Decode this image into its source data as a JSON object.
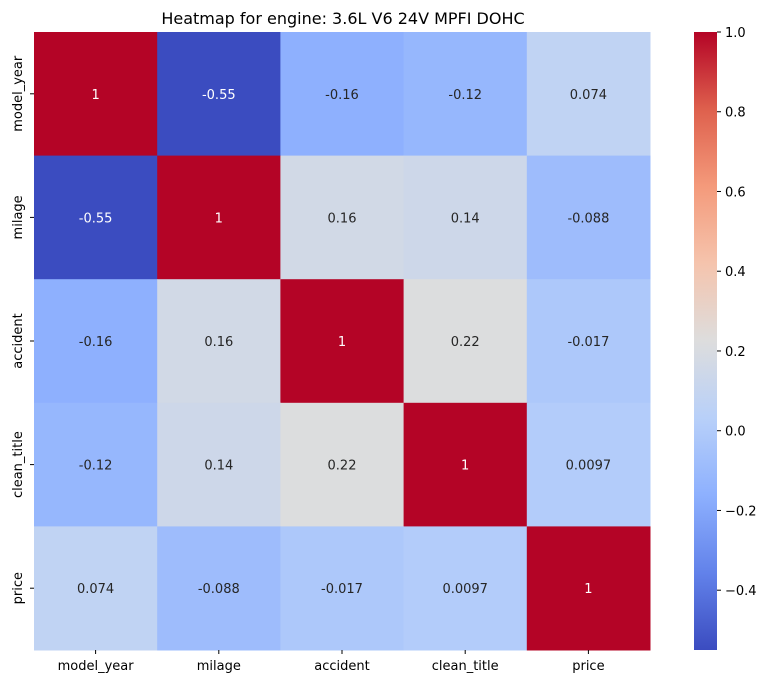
{
  "chart_data": {
    "type": "heatmap",
    "title": "Heatmap for engine: 3.6L V6 24V MPFI DOHC",
    "x_categories": [
      "model_year",
      "milage",
      "accident",
      "clean_title",
      "price"
    ],
    "y_categories": [
      "model_year",
      "milage",
      "accident",
      "clean_title",
      "price"
    ],
    "values": [
      [
        1,
        -0.55,
        -0.16,
        -0.12,
        0.074
      ],
      [
        -0.55,
        1,
        0.16,
        0.14,
        -0.088
      ],
      [
        -0.16,
        0.16,
        1,
        0.22,
        -0.017
      ],
      [
        -0.12,
        0.14,
        0.22,
        1,
        0.0097
      ],
      [
        0.074,
        -0.088,
        -0.017,
        0.0097,
        1
      ]
    ],
    "cell_labels": [
      [
        "1",
        "-0.55",
        "-0.16",
        "-0.12",
        "0.074"
      ],
      [
        "-0.55",
        "1",
        "0.16",
        "0.14",
        "-0.088"
      ],
      [
        "-0.16",
        "0.16",
        "1",
        "0.22",
        "-0.017"
      ],
      [
        "-0.12",
        "0.14",
        "0.22",
        "1",
        "0.0097"
      ],
      [
        "0.074",
        "-0.088",
        "-0.017",
        "0.0097",
        "1"
      ]
    ],
    "colormap": "coolwarm",
    "colorbar": {
      "vmin": -0.55,
      "vmax": 1.0,
      "ticks": [
        1.0,
        0.8,
        0.6,
        0.4,
        0.2,
        0.0,
        -0.2,
        -0.4
      ],
      "tick_labels": [
        "1.0",
        "0.8",
        "0.6",
        "0.4",
        "0.2",
        "0.0",
        "−0.2",
        "−0.4"
      ]
    }
  }
}
